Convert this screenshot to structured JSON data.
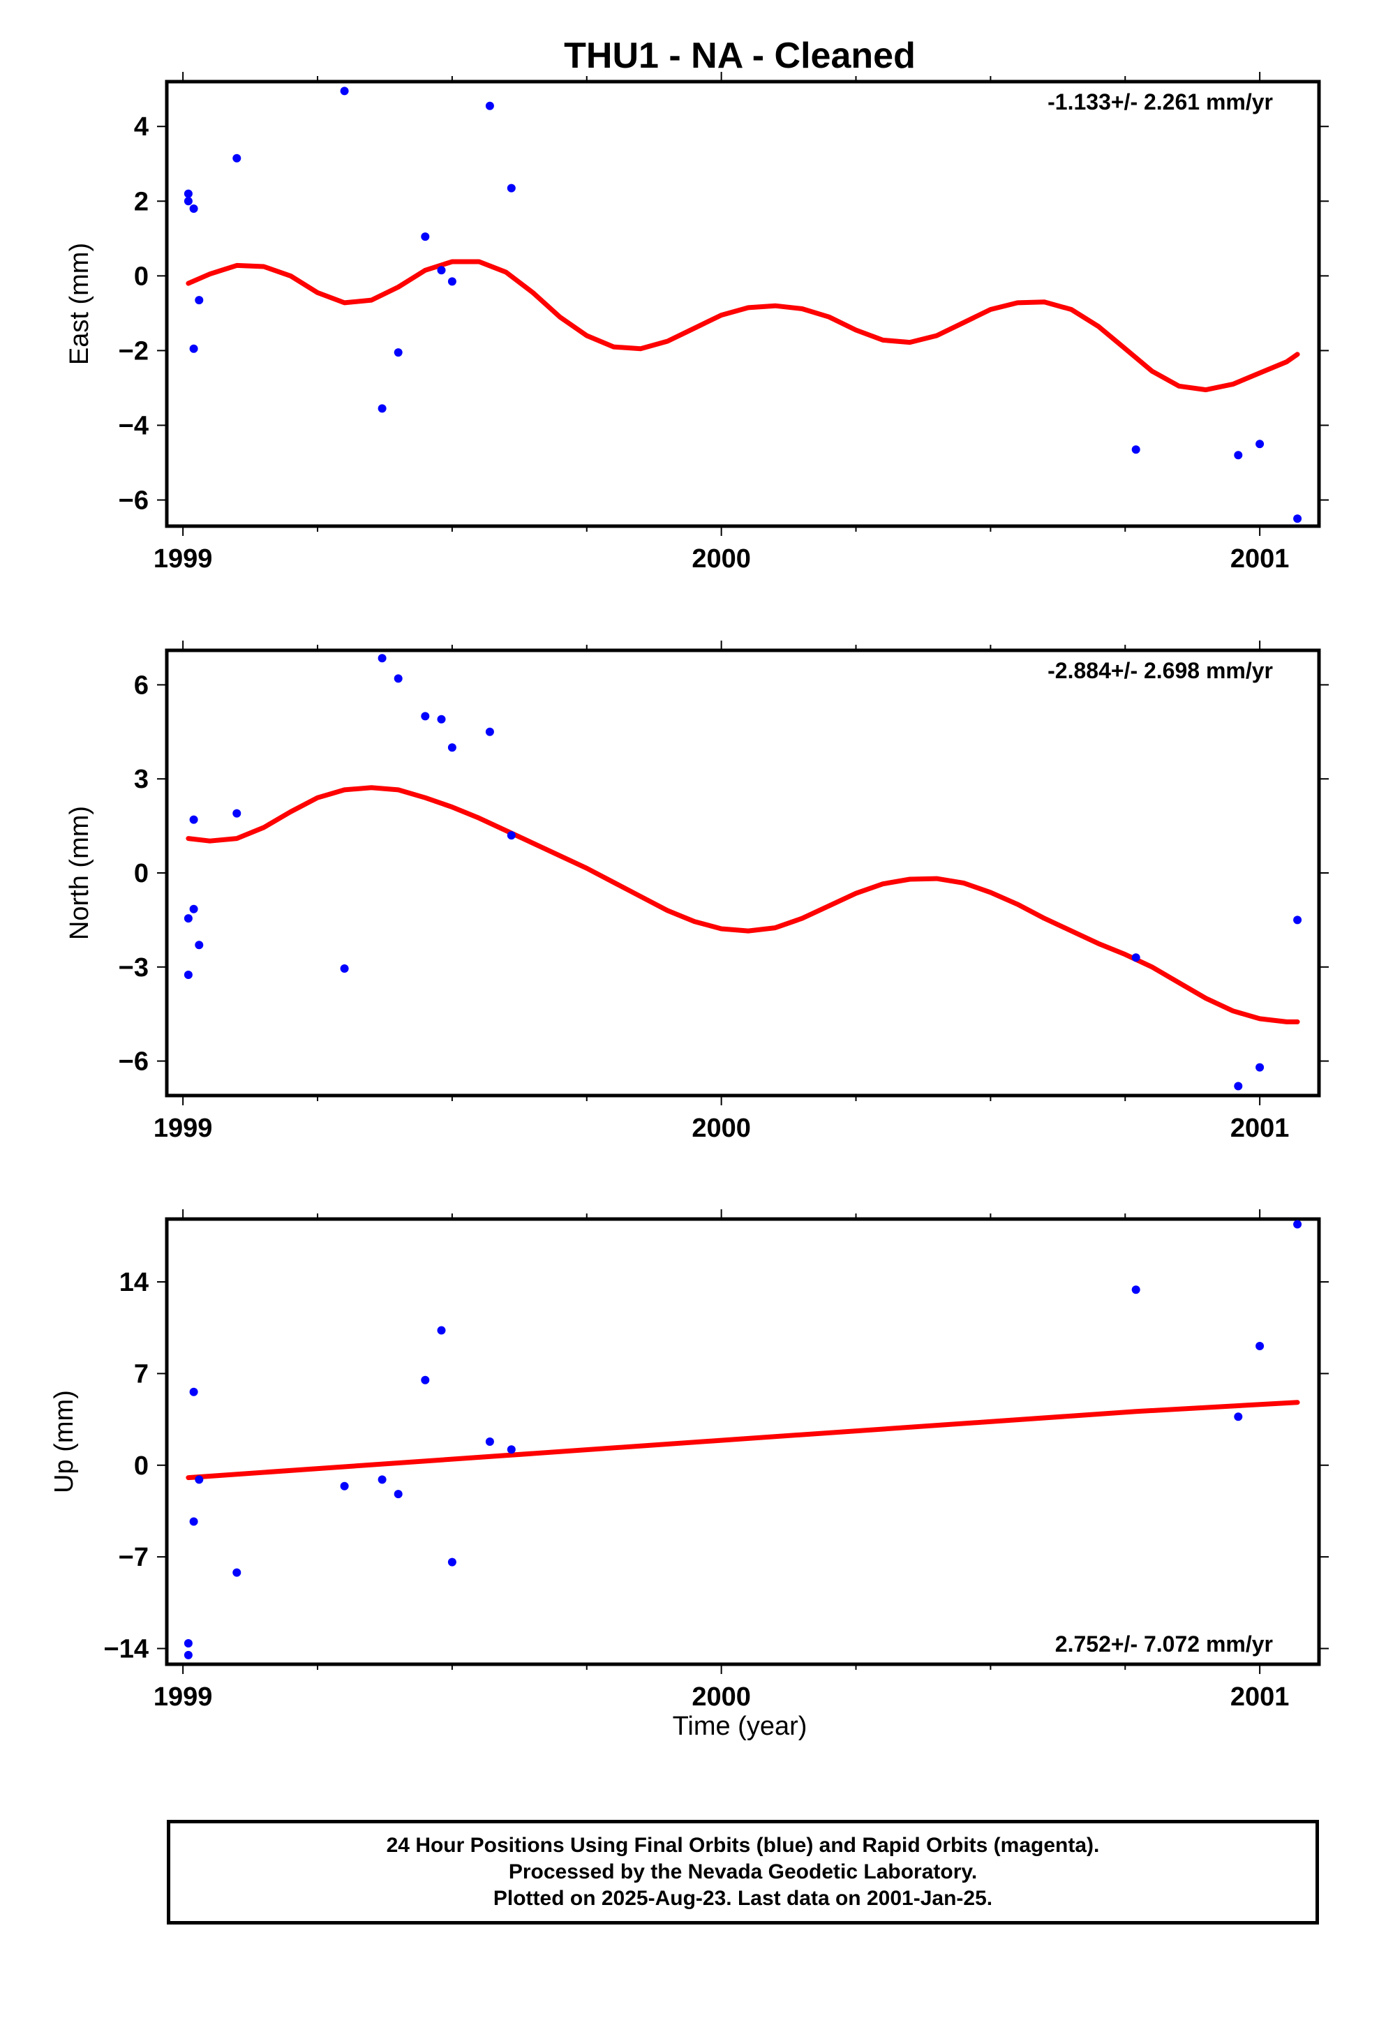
{
  "title": "THU1  - NA - Cleaned",
  "colors": {
    "points": "#0000ff",
    "fit": "#ff0000",
    "frame": "#000000"
  },
  "x_axis": {
    "label": "Time (year)",
    "range": [
      1998.97,
      2001.11
    ],
    "tick_labels": [
      "1999",
      "2000",
      "2001"
    ]
  },
  "chart_data": [
    {
      "type": "scatter",
      "name": "east",
      "ylabel": "East (mm)",
      "ylim": [
        -6.7,
        5.2
      ],
      "y_ticks": [
        -6,
        -4,
        -2,
        0,
        2,
        4
      ],
      "y_tick_labels": [
        "−6",
        "−4",
        "−2",
        "0",
        "2",
        "4"
      ],
      "annotation": "-1.133+/- 2.261 mm/yr",
      "annotation_position": "top-right",
      "points": [
        [
          1999.01,
          2.2
        ],
        [
          1999.01,
          2.0
        ],
        [
          1999.02,
          1.8
        ],
        [
          1999.02,
          -1.95
        ],
        [
          1999.03,
          -0.65
        ],
        [
          1999.1,
          3.15
        ],
        [
          1999.3,
          4.95
        ],
        [
          1999.37,
          -3.55
        ],
        [
          1999.4,
          -2.05
        ],
        [
          1999.45,
          1.05
        ],
        [
          1999.48,
          0.15
        ],
        [
          1999.5,
          -0.15
        ],
        [
          1999.57,
          4.55
        ],
        [
          1999.61,
          2.35
        ],
        [
          2000.77,
          -4.65
        ],
        [
          2000.96,
          -4.8
        ],
        [
          2001.0,
          -4.5
        ],
        [
          2001.07,
          -6.5
        ]
      ],
      "fit": [
        [
          1999.01,
          -0.2
        ],
        [
          1999.05,
          0.05
        ],
        [
          1999.1,
          0.28
        ],
        [
          1999.15,
          0.25
        ],
        [
          1999.2,
          0.0
        ],
        [
          1999.25,
          -0.45
        ],
        [
          1999.3,
          -0.72
        ],
        [
          1999.35,
          -0.65
        ],
        [
          1999.4,
          -0.3
        ],
        [
          1999.45,
          0.15
        ],
        [
          1999.5,
          0.38
        ],
        [
          1999.55,
          0.38
        ],
        [
          1999.6,
          0.1
        ],
        [
          1999.65,
          -0.45
        ],
        [
          1999.7,
          -1.1
        ],
        [
          1999.75,
          -1.6
        ],
        [
          1999.8,
          -1.9
        ],
        [
          1999.85,
          -1.95
        ],
        [
          1999.9,
          -1.75
        ],
        [
          1999.95,
          -1.4
        ],
        [
          2000.0,
          -1.05
        ],
        [
          2000.05,
          -0.85
        ],
        [
          2000.1,
          -0.8
        ],
        [
          2000.15,
          -0.88
        ],
        [
          2000.2,
          -1.1
        ],
        [
          2000.25,
          -1.45
        ],
        [
          2000.3,
          -1.72
        ],
        [
          2000.35,
          -1.78
        ],
        [
          2000.4,
          -1.6
        ],
        [
          2000.45,
          -1.25
        ],
        [
          2000.5,
          -0.9
        ],
        [
          2000.55,
          -0.72
        ],
        [
          2000.6,
          -0.7
        ],
        [
          2000.65,
          -0.9
        ],
        [
          2000.7,
          -1.35
        ],
        [
          2000.75,
          -1.95
        ],
        [
          2000.8,
          -2.55
        ],
        [
          2000.85,
          -2.95
        ],
        [
          2000.9,
          -3.05
        ],
        [
          2000.95,
          -2.9
        ],
        [
          2001.0,
          -2.6
        ],
        [
          2001.05,
          -2.3
        ],
        [
          2001.07,
          -2.1
        ]
      ]
    },
    {
      "type": "scatter",
      "name": "north",
      "ylabel": "North (mm)",
      "ylim": [
        -7.1,
        7.1
      ],
      "y_ticks": [
        -6,
        -3,
        0,
        3,
        6
      ],
      "y_tick_labels": [
        "−6",
        "−3",
        "0",
        "3",
        "6"
      ],
      "annotation": "-2.884+/- 2.698 mm/yr",
      "annotation_position": "top-right",
      "points": [
        [
          1999.01,
          -1.45
        ],
        [
          1999.01,
          -3.25
        ],
        [
          1999.02,
          -1.15
        ],
        [
          1999.02,
          1.7
        ],
        [
          1999.03,
          -2.3
        ],
        [
          1999.1,
          1.9
        ],
        [
          1999.3,
          -3.05
        ],
        [
          1999.37,
          6.85
        ],
        [
          1999.4,
          6.2
        ],
        [
          1999.45,
          5.0
        ],
        [
          1999.48,
          4.9
        ],
        [
          1999.5,
          4.0
        ],
        [
          1999.57,
          4.5
        ],
        [
          1999.61,
          1.2
        ],
        [
          2000.77,
          -2.7
        ],
        [
          2000.96,
          -6.8
        ],
        [
          2001.0,
          -6.2
        ],
        [
          2001.07,
          -1.5
        ]
      ],
      "fit": [
        [
          1999.01,
          1.1
        ],
        [
          1999.05,
          1.02
        ],
        [
          1999.1,
          1.1
        ],
        [
          1999.15,
          1.45
        ],
        [
          1999.2,
          1.95
        ],
        [
          1999.25,
          2.4
        ],
        [
          1999.3,
          2.65
        ],
        [
          1999.35,
          2.72
        ],
        [
          1999.4,
          2.65
        ],
        [
          1999.45,
          2.4
        ],
        [
          1999.5,
          2.1
        ],
        [
          1999.55,
          1.75
        ],
        [
          1999.6,
          1.35
        ],
        [
          1999.65,
          0.95
        ],
        [
          1999.7,
          0.55
        ],
        [
          1999.75,
          0.15
        ],
        [
          1999.8,
          -0.3
        ],
        [
          1999.85,
          -0.75
        ],
        [
          1999.9,
          -1.2
        ],
        [
          1999.95,
          -1.55
        ],
        [
          2000.0,
          -1.78
        ],
        [
          2000.05,
          -1.85
        ],
        [
          2000.1,
          -1.75
        ],
        [
          2000.15,
          -1.45
        ],
        [
          2000.2,
          -1.05
        ],
        [
          2000.25,
          -0.65
        ],
        [
          2000.3,
          -0.35
        ],
        [
          2000.35,
          -0.2
        ],
        [
          2000.4,
          -0.18
        ],
        [
          2000.45,
          -0.32
        ],
        [
          2000.5,
          -0.62
        ],
        [
          2000.55,
          -1.0
        ],
        [
          2000.6,
          -1.45
        ],
        [
          2000.65,
          -1.85
        ],
        [
          2000.7,
          -2.25
        ],
        [
          2000.75,
          -2.6
        ],
        [
          2000.8,
          -3.0
        ],
        [
          2000.85,
          -3.5
        ],
        [
          2000.9,
          -4.0
        ],
        [
          2000.95,
          -4.4
        ],
        [
          2001.0,
          -4.65
        ],
        [
          2001.05,
          -4.75
        ],
        [
          2001.07,
          -4.75
        ]
      ]
    },
    {
      "type": "scatter",
      "name": "up",
      "ylabel": "Up (mm)",
      "ylim": [
        -15.2,
        18.8
      ],
      "y_ticks": [
        -14,
        -7,
        0,
        7,
        14
      ],
      "y_tick_labels": [
        "−14",
        "−7",
        "0",
        "7",
        "14"
      ],
      "annotation": "2.752+/- 7.072 mm/yr",
      "annotation_position": "bottom-right",
      "points": [
        [
          1999.01,
          -13.6
        ],
        [
          1999.01,
          -14.5
        ],
        [
          1999.02,
          -4.3
        ],
        [
          1999.02,
          5.6
        ],
        [
          1999.03,
          -1.1
        ],
        [
          1999.1,
          -8.2
        ],
        [
          1999.3,
          -1.6
        ],
        [
          1999.37,
          -1.1
        ],
        [
          1999.4,
          -2.2
        ],
        [
          1999.45,
          6.5
        ],
        [
          1999.48,
          10.3
        ],
        [
          1999.5,
          -7.4
        ],
        [
          1999.57,
          1.8
        ],
        [
          1999.61,
          1.2
        ],
        [
          2000.77,
          13.4
        ],
        [
          2000.96,
          3.7
        ],
        [
          2001.0,
          9.1
        ],
        [
          2001.07,
          18.4
        ]
      ],
      "fit": [
        [
          1999.01,
          -0.95
        ],
        [
          2000.0,
          1.9
        ],
        [
          2000.77,
          4.1
        ],
        [
          2001.07,
          4.8
        ]
      ]
    }
  ],
  "footer": {
    "line1": "24 Hour Positions Using Final Orbits (blue) and Rapid Orbits (magenta).",
    "line2": "Processed by the Nevada Geodetic Laboratory.",
    "line3": "Plotted on 2025-Aug-23. Last data on 2001-Jan-25."
  }
}
